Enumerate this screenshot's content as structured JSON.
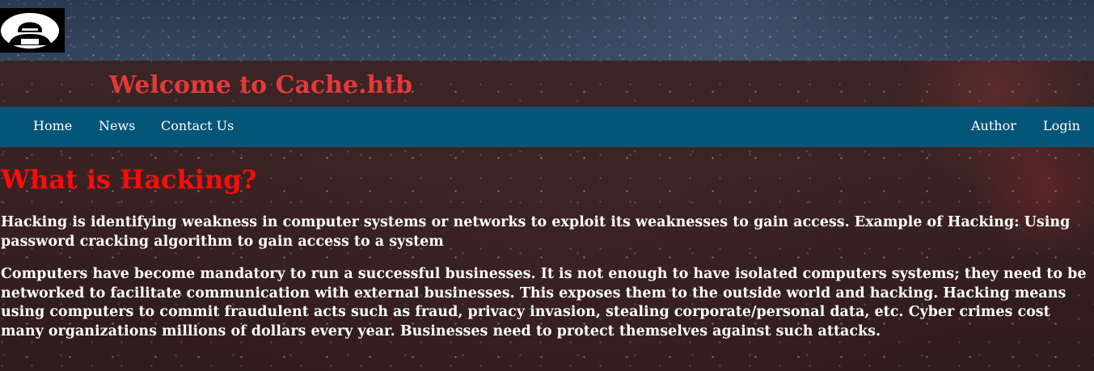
{
  "header": {
    "logo_icon": "hacker-logo-icon",
    "title": "Welcome to Cache.htb"
  },
  "nav": {
    "left": [
      {
        "label": "Home"
      },
      {
        "label": "News"
      },
      {
        "label": "Contact Us"
      }
    ],
    "right": [
      {
        "label": "Author"
      },
      {
        "label": "Login"
      }
    ]
  },
  "main": {
    "heading": "What is Hacking?",
    "paragraphs": [
      "Hacking is identifying weakness in computer systems or networks to exploit its weaknesses to gain access. Example of Hacking: Using password cracking algorithm to gain access to a system",
      "Computers have become mandatory to run a successful businesses. It is not enough to have isolated computers systems; they need to be networked to facilitate communication with external businesses. This exposes them to the outside world and hacking. Hacking means using computers to commit fraudulent acts such as fraud, privacy invasion, stealing corporate/personal data, etc. Cyber crimes cost many organizations millions of dollars every year. Businesses need to protect themselves against such attacks."
    ]
  },
  "colors": {
    "title_red": "#e23a3a",
    "heading_red": "#ff0b0b",
    "navbar_blue": "#045678",
    "top_band": "#2f3f55",
    "background": "#3a2223"
  }
}
